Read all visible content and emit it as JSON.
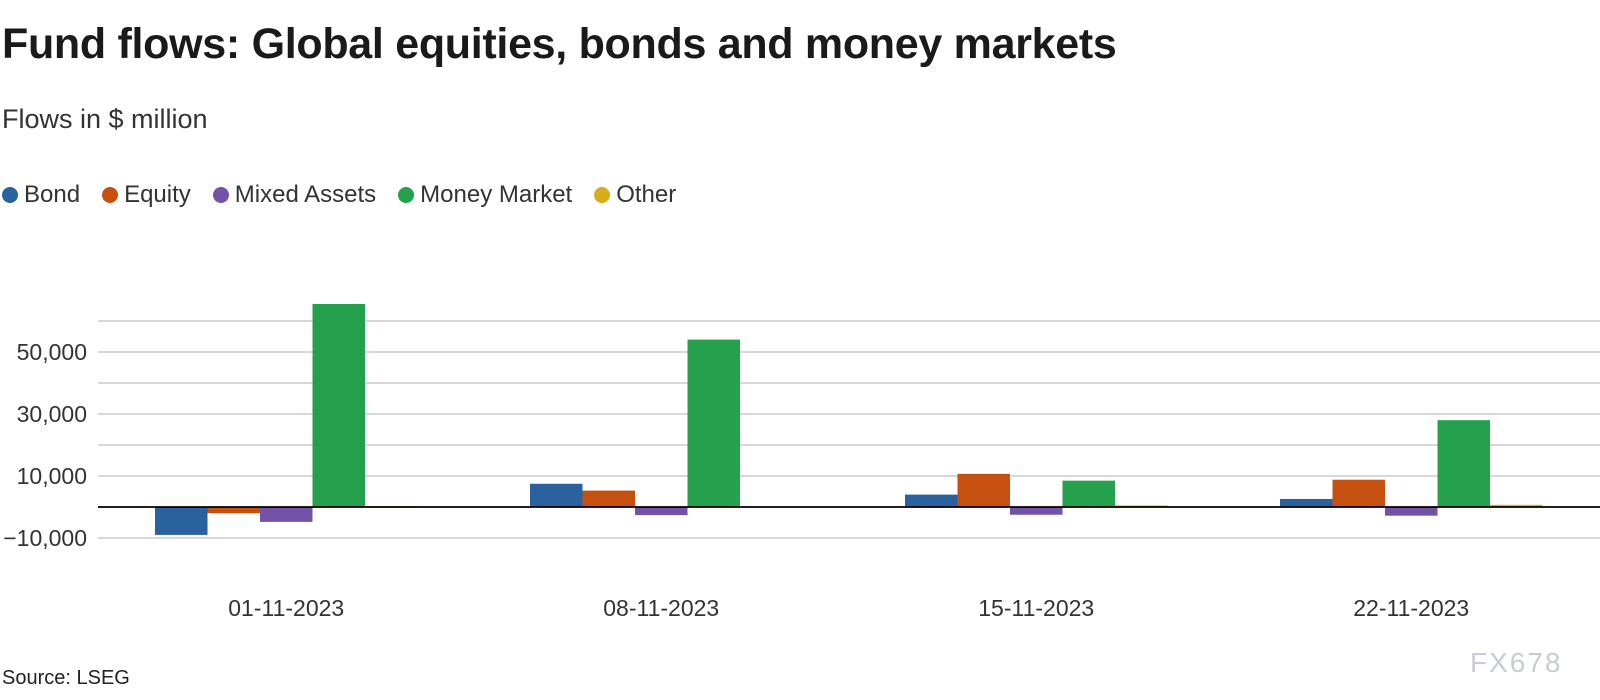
{
  "header": {
    "title": "Fund flows: Global equities, bonds and money markets",
    "subtitle": "Flows in $ million"
  },
  "footer": {
    "source": "Source: LSEG",
    "watermark": "FX678"
  },
  "colors": {
    "grid": "#cccccc",
    "zero_line": "#000000",
    "text": "#333333"
  },
  "chart_data": {
    "type": "bar",
    "title": "Fund flows: Global equities, bonds and money markets",
    "subtitle": "Flows in $ million",
    "categories": [
      "01-11-2023",
      "08-11-2023",
      "15-11-2023",
      "22-11-2023"
    ],
    "series": [
      {
        "name": "Bond",
        "color": "#2a62a0",
        "values": [
          -9000,
          7500,
          4000,
          2600
        ]
      },
      {
        "name": "Equity",
        "color": "#c6500f",
        "values": [
          -2000,
          5300,
          10700,
          8800
        ]
      },
      {
        "name": "Mixed Assets",
        "color": "#7353a8",
        "values": [
          -4800,
          -2600,
          -2500,
          -2800
        ]
      },
      {
        "name": "Money Market",
        "color": "#25a04c",
        "values": [
          65500,
          54000,
          8500,
          28000
        ]
      },
      {
        "name": "Other",
        "color": "#d9ad1a",
        "values": [
          300,
          0,
          500,
          700
        ]
      }
    ],
    "yticks": [
      -10000,
      10000,
      30000,
      50000
    ],
    "ytick_labels": [
      "−10,000",
      "10,000",
      "30,000",
      "50,000"
    ],
    "ylim": [
      -10000,
      60000
    ],
    "grid": true,
    "legend": "top-left"
  }
}
